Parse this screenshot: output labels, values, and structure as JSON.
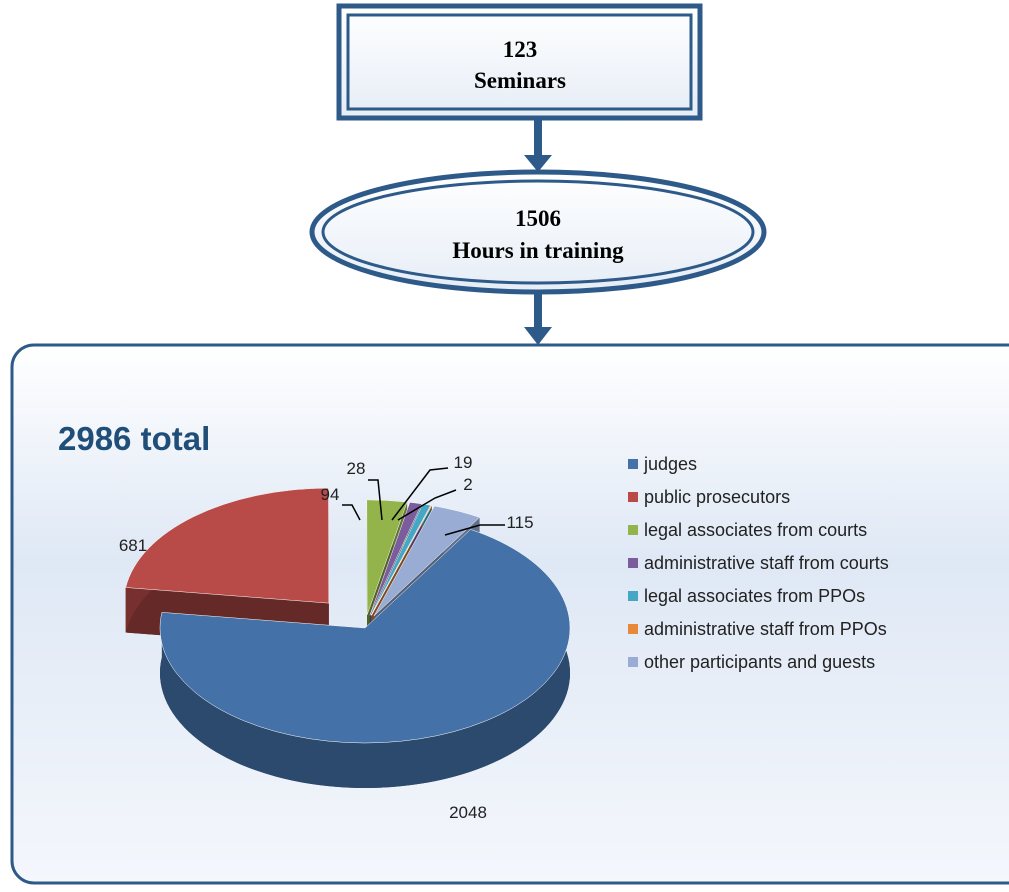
{
  "boxes": {
    "seminars": {
      "value": "123",
      "label": "Seminars"
    },
    "hours": {
      "value": "1506",
      "label": "Hours in training"
    }
  },
  "chart_data": {
    "type": "pie3d",
    "title": "2986 total",
    "categories": [
      "judges",
      "public prosecutors",
      "legal associates from courts",
      "administrative staff from courts",
      "legal associates from PPOs",
      "administrative staff from PPOs",
      "other participants and guests"
    ],
    "values": [
      2048,
      681,
      94,
      28,
      19,
      2,
      115
    ],
    "colors": [
      "#4472a8",
      "#b84a47",
      "#93b44a",
      "#7b5c9c",
      "#44a8c4",
      "#e8893a",
      "#98acd4"
    ],
    "legend": "right"
  }
}
